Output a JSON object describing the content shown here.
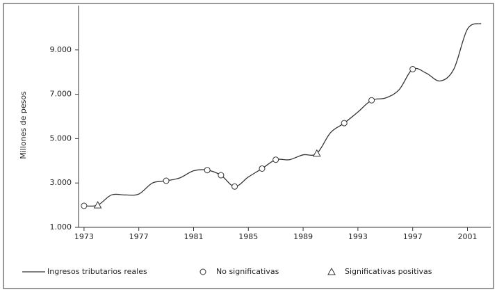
{
  "chart_data": {
    "type": "line",
    "y_label": "Millones de pesos",
    "x": [
      1973,
      1974,
      1975,
      1976,
      1977,
      1978,
      1979,
      1980,
      1981,
      1982,
      1983,
      1984,
      1985,
      1986,
      1987,
      1988,
      1989,
      1990,
      1991,
      1992,
      1993,
      1994,
      1995,
      1996,
      1997,
      1998,
      1999,
      2000,
      2001,
      2002
    ],
    "series": [
      {
        "name": "Ingresos tributarios reales",
        "color": "#333333",
        "marker": "line",
        "x": [
          1973,
          1974,
          1975,
          1976,
          1977,
          1978,
          1979,
          1980,
          1981,
          1982,
          1983,
          1984,
          1985,
          1986,
          1987,
          1988,
          1989,
          1990,
          1991,
          1992,
          1993,
          1994,
          1995,
          1996,
          1997,
          1998,
          1999,
          2000,
          2001,
          2002
        ],
        "values": [
          1970,
          2000,
          2460,
          2460,
          2500,
          3000,
          3100,
          3230,
          3550,
          3580,
          3350,
          2840,
          3270,
          3650,
          4050,
          4050,
          4270,
          4330,
          5270,
          5700,
          6200,
          6730,
          6830,
          7200,
          8130,
          7950,
          7600,
          8130,
          9940,
          10190
        ]
      },
      {
        "name": "No significativas",
        "color": "#333333",
        "marker": "circle",
        "x": [
          1973,
          1979,
          1982,
          1983,
          1984,
          1986,
          1987,
          1992,
          1994,
          1997
        ],
        "values": [
          1970,
          3100,
          3580,
          3350,
          2840,
          3650,
          4050,
          5700,
          6730,
          8130
        ]
      },
      {
        "name": "Significativas positivas",
        "color": "#333333",
        "marker": "triangle",
        "x": [
          1974,
          1990
        ],
        "values": [
          2000,
          4330
        ]
      }
    ],
    "xlim": [
      1972.6,
      2002.7
    ],
    "xticks": [
      1973,
      1977,
      1981,
      1985,
      1989,
      1993,
      1997,
      2001
    ],
    "ylim": [
      1000,
      11000
    ],
    "yticks": [
      {
        "value": 1000,
        "label": "1.000"
      },
      {
        "value": 3000,
        "label": "3.000"
      },
      {
        "value": 5000,
        "label": "5.000"
      },
      {
        "value": 7000,
        "label": "7.000"
      },
      {
        "value": 9000,
        "label": "9.000"
      }
    ]
  }
}
